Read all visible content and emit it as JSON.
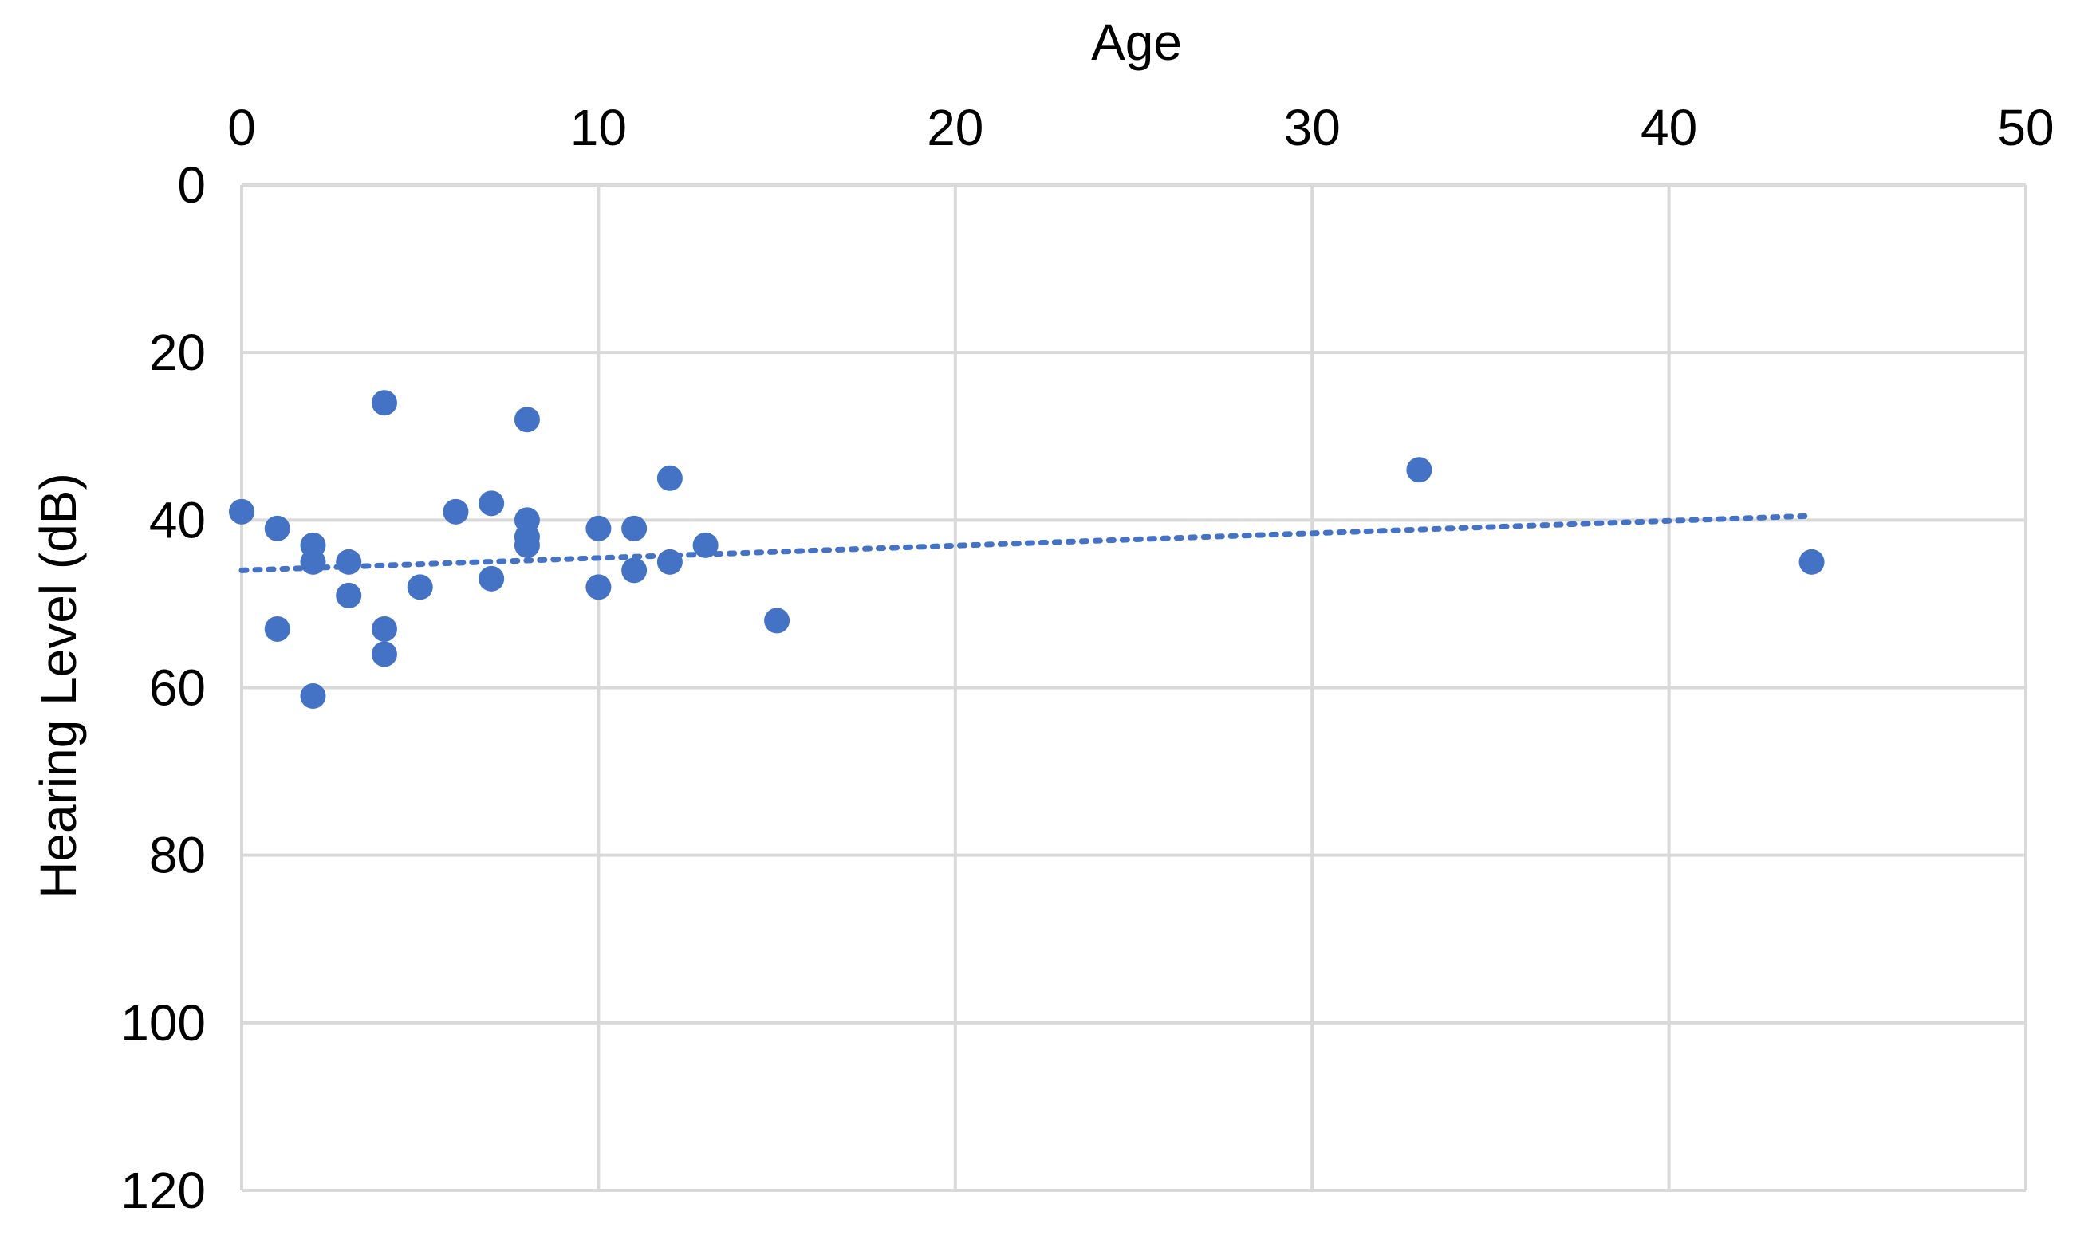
{
  "chart_data": {
    "type": "scatter",
    "title": "",
    "xlabel": "Age",
    "ylabel": "Hearing Level (dB)",
    "x_axis_position": "top",
    "y_axis_inverted": true,
    "xlim": [
      0,
      50
    ],
    "ylim": [
      0,
      120
    ],
    "x_ticks": [
      0,
      10,
      20,
      30,
      40,
      50
    ],
    "y_ticks": [
      0,
      20,
      40,
      60,
      80,
      100,
      120
    ],
    "grid": true,
    "legend": "none",
    "series": [
      {
        "color": "#4472C4",
        "points": [
          {
            "x": 0,
            "y": 39
          },
          {
            "x": 1,
            "y": 41
          },
          {
            "x": 1,
            "y": 53
          },
          {
            "x": 2,
            "y": 43
          },
          {
            "x": 2,
            "y": 45
          },
          {
            "x": 2,
            "y": 61
          },
          {
            "x": 3,
            "y": 45
          },
          {
            "x": 3,
            "y": 49
          },
          {
            "x": 4,
            "y": 26
          },
          {
            "x": 4,
            "y": 53
          },
          {
            "x": 4,
            "y": 56
          },
          {
            "x": 5,
            "y": 48
          },
          {
            "x": 6,
            "y": 39
          },
          {
            "x": 7,
            "y": 38
          },
          {
            "x": 7,
            "y": 47
          },
          {
            "x": 8,
            "y": 28
          },
          {
            "x": 8,
            "y": 40
          },
          {
            "x": 8,
            "y": 42
          },
          {
            "x": 8,
            "y": 43
          },
          {
            "x": 10,
            "y": 41
          },
          {
            "x": 10,
            "y": 48
          },
          {
            "x": 11,
            "y": 41
          },
          {
            "x": 11,
            "y": 46
          },
          {
            "x": 12,
            "y": 35
          },
          {
            "x": 12,
            "y": 45
          },
          {
            "x": 13,
            "y": 43
          },
          {
            "x": 15,
            "y": 52
          },
          {
            "x": 33,
            "y": 34
          },
          {
            "x": 44,
            "y": 45
          }
        ]
      }
    ],
    "trendline": {
      "type": "linear",
      "style": "dotted",
      "color": "#4472C4",
      "x": [
        0,
        44
      ],
      "y": [
        46,
        39.5
      ]
    }
  }
}
